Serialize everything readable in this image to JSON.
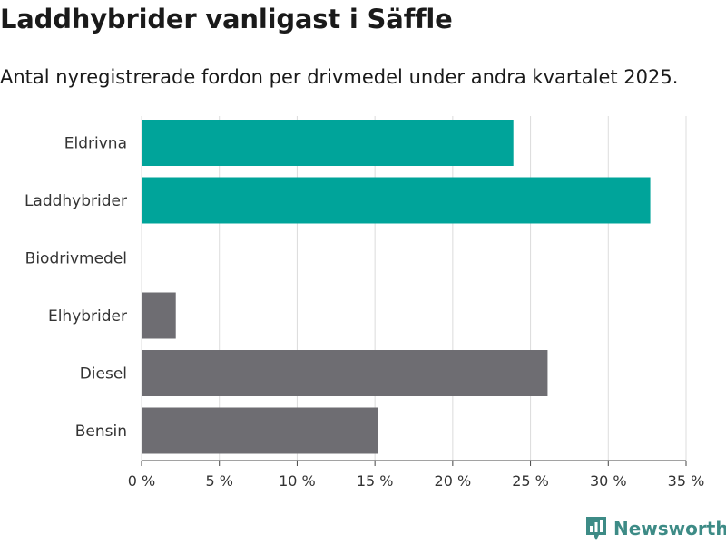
{
  "title": "Laddhybrider vanligast i Säffle",
  "subtitle": "Antal nyregistrerade fordon per drivmedel under andra kvartalet 2025.",
  "brand": "Newsworthy",
  "colors": {
    "highlight": "#00a49a",
    "default": "#6e6d72",
    "grid": "#dcdcdc",
    "brand": "#3d8b86"
  },
  "chart_data": {
    "type": "bar",
    "orientation": "horizontal",
    "categories": [
      "Eldrivna",
      "Laddhybrider",
      "Biodrivmedel",
      "Elhybrider",
      "Diesel",
      "Bensin"
    ],
    "values": [
      23.9,
      32.7,
      0,
      2.2,
      26.1,
      15.2
    ],
    "highlighted": [
      true,
      true,
      false,
      false,
      false,
      false
    ],
    "xlim": [
      0,
      35
    ],
    "xticks": [
      0,
      5,
      10,
      15,
      20,
      25,
      30,
      35
    ],
    "tick_labels": [
      "0 %",
      "5 %",
      "10 %",
      "15 %",
      "20 %",
      "25 %",
      "30 %",
      "35 %"
    ],
    "grid": true
  }
}
